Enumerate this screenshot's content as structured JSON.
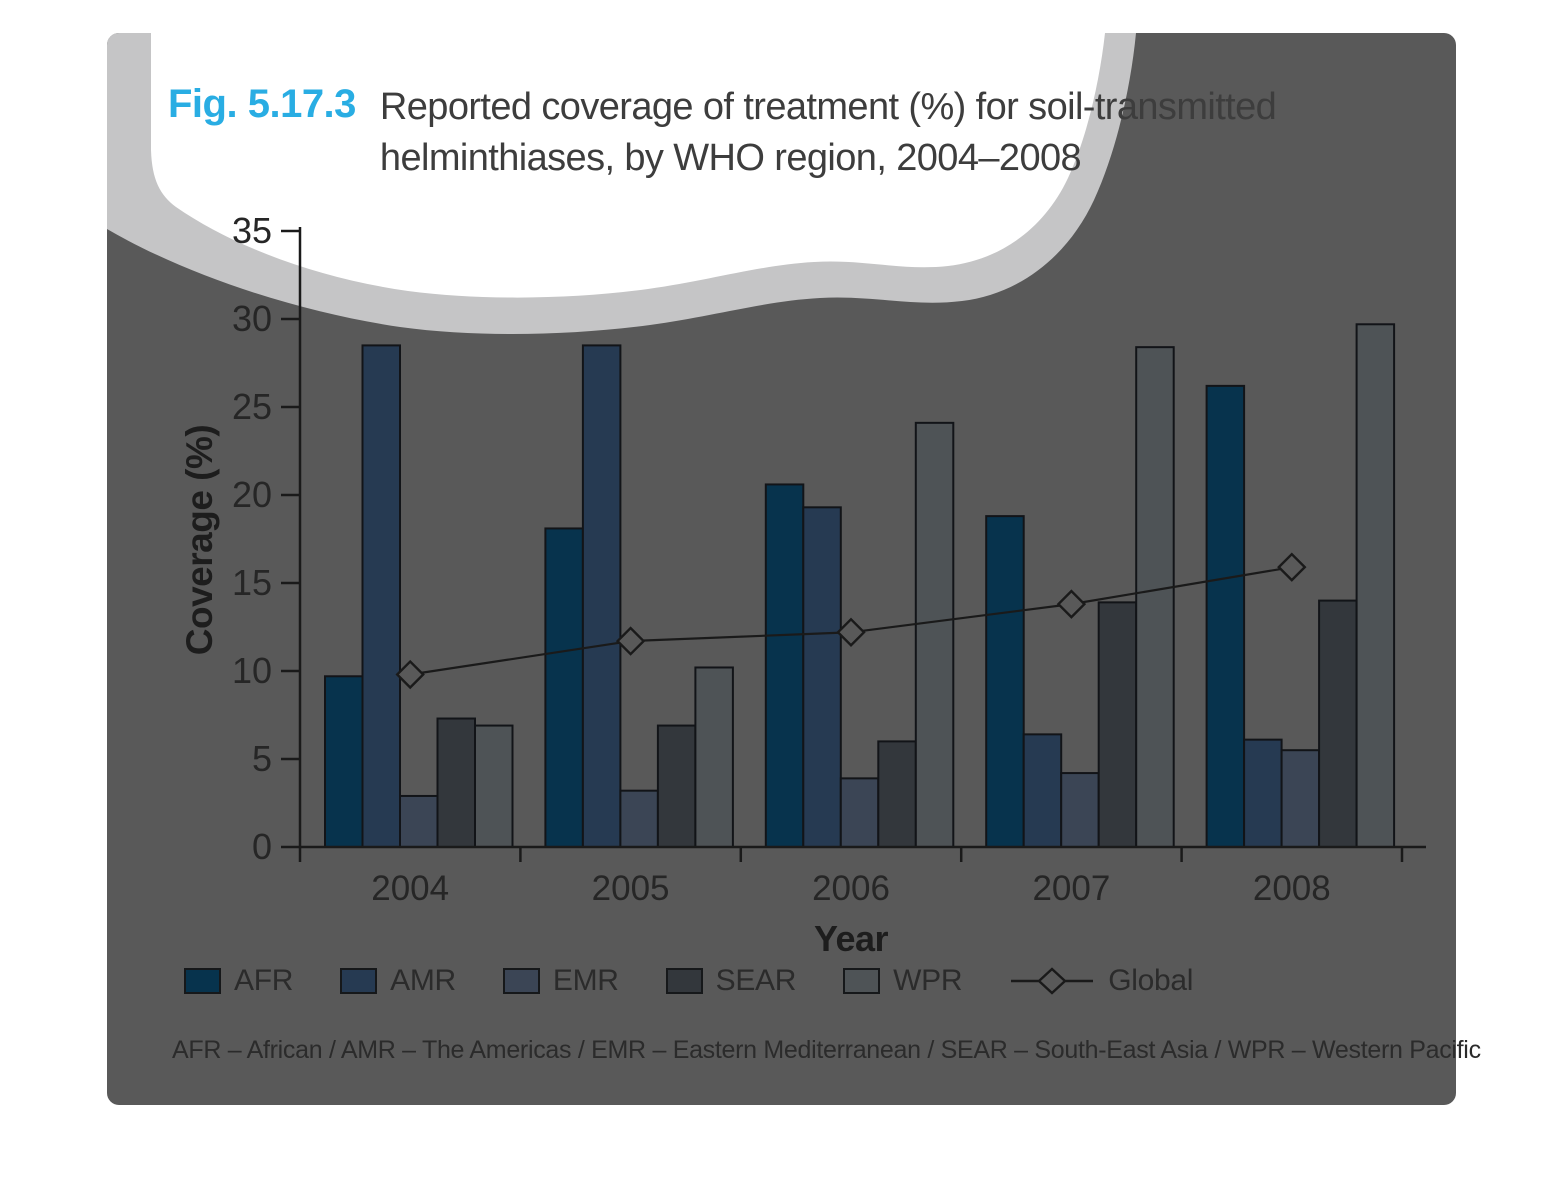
{
  "figure": {
    "fig_label": "Fig. 5.17.3",
    "title_line1": "Reported coverage of treatment (%) for soil-transmitted",
    "title_line2": "helminthiases, by WHO region, 2004–2008",
    "footnote": "AFR – African / AMR – The Americas / EMR – Eastern Mediterranean / SEAR – South-East Asia / WPR – Western Pacific",
    "colors": {
      "accent_cyan": "#29ade3",
      "panel_gray": "#595959",
      "cloud_band_gray": "#c5c5c6",
      "cloud_white": "#ffffff",
      "axis_black": "#1a1a1a",
      "tick_label": "#262626",
      "title_gray": "#3d3d3d"
    }
  },
  "chart_data": {
    "type": "bar",
    "subtype": "grouped-bars-with-line-overlay",
    "title": "Reported coverage of treatment (%) for soil-transmitted helminthiases, by WHO region, 2004–2008",
    "xlabel": "Year",
    "ylabel": "Coverage (%)",
    "ylim": [
      0,
      35
    ],
    "ytick_step": 5,
    "grid": false,
    "legend_position": "bottom",
    "categories": [
      "2004",
      "2005",
      "2006",
      "2007",
      "2008"
    ],
    "series": [
      {
        "name": "AFR",
        "color": "#07334d",
        "values": [
          9.7,
          18.1,
          20.6,
          18.8,
          26.2
        ]
      },
      {
        "name": "AMR",
        "color": "#263a52",
        "values": [
          28.5,
          28.5,
          19.3,
          6.4,
          6.1
        ]
      },
      {
        "name": "EMR",
        "color": "#3b4555",
        "values": [
          2.9,
          3.2,
          3.9,
          4.2,
          5.5
        ]
      },
      {
        "name": "SEAR",
        "color": "#33373c",
        "values": [
          7.3,
          6.9,
          6.0,
          13.9,
          14.0
        ]
      },
      {
        "name": "WPR",
        "color": "#4e5356",
        "values": [
          6.9,
          10.2,
          24.1,
          28.4,
          29.7
        ]
      }
    ],
    "line_series": {
      "name": "Global",
      "color": "#1a1a1a",
      "marker": "diamond",
      "values": [
        9.8,
        11.7,
        12.2,
        13.8,
        15.9
      ]
    }
  }
}
